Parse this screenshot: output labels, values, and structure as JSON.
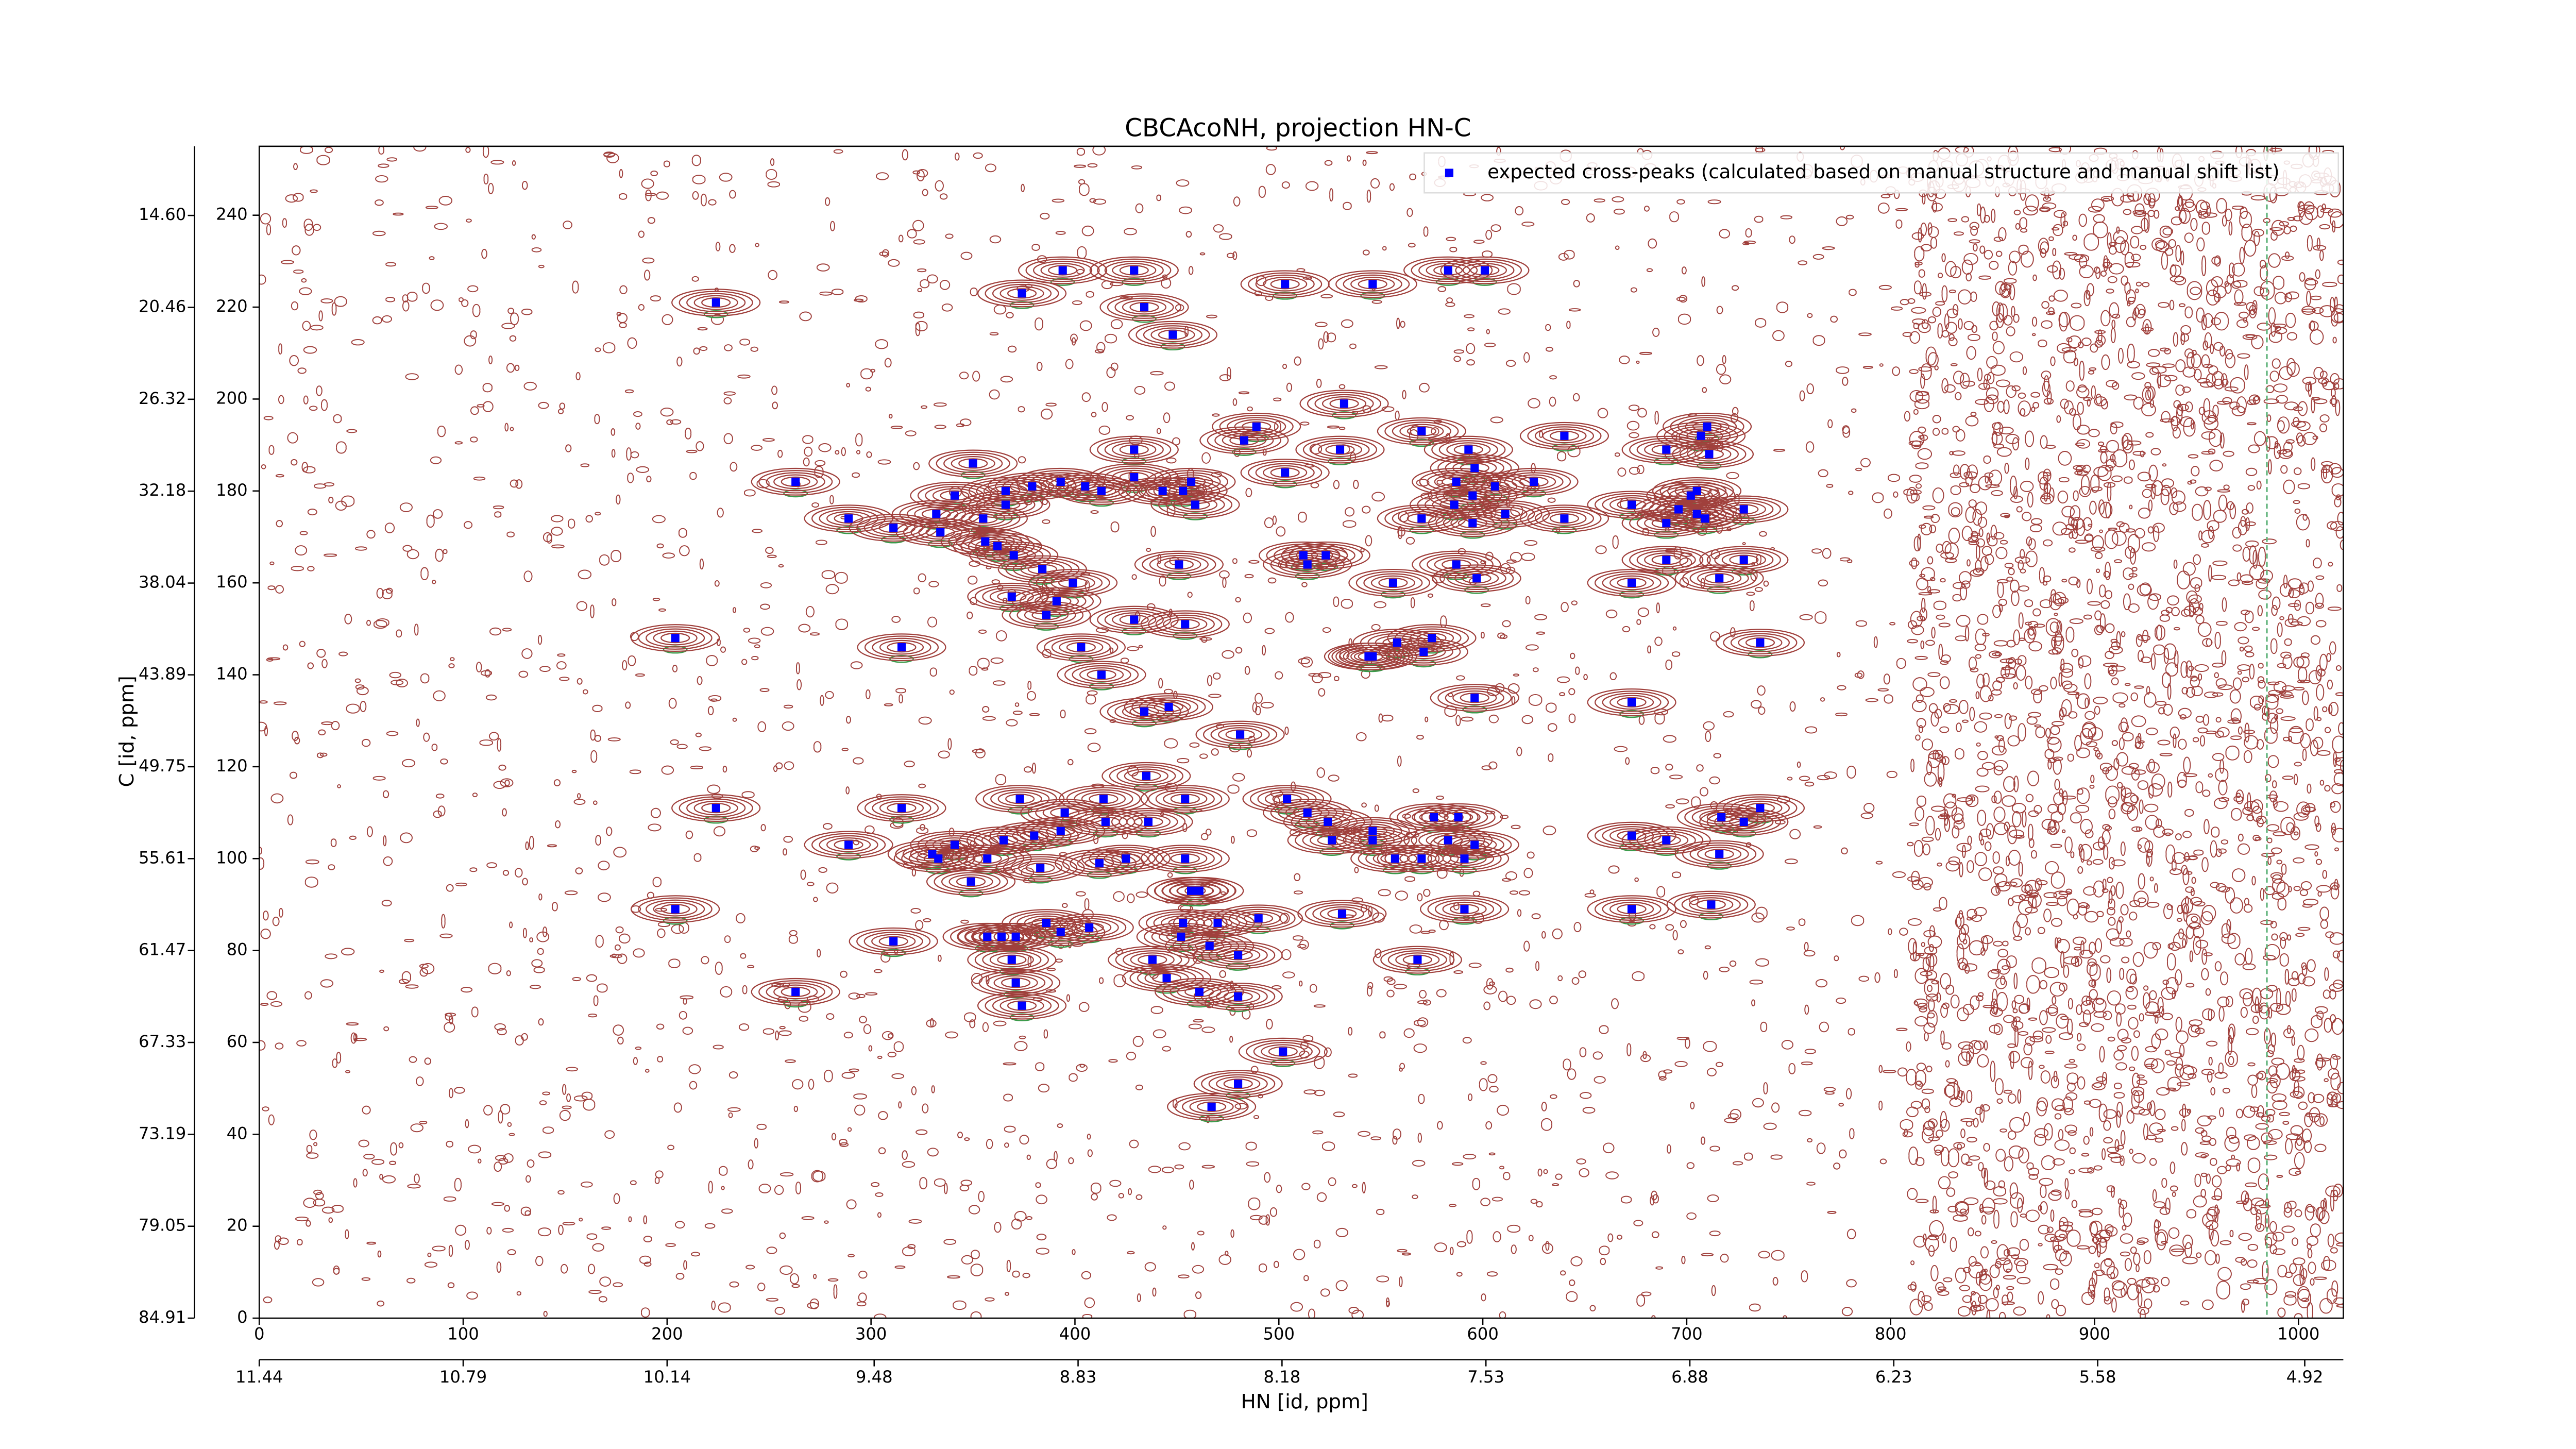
{
  "chart_data": {
    "type": "scatter",
    "title": "CBCAcoNH, projection HN-C",
    "xlabel": "HN [id, ppm]",
    "ylabel": "C [id, ppm]",
    "xlim": [
      0,
      1022
    ],
    "ylim": [
      0,
      255
    ],
    "xticks": [
      0,
      100,
      200,
      300,
      400,
      500,
      600,
      700,
      800,
      900,
      1000
    ],
    "yticks": [
      0,
      20,
      40,
      60,
      80,
      100,
      120,
      140,
      160,
      180,
      200,
      220,
      240
    ],
    "x2lim": [
      11.44,
      4.797
    ],
    "x2ticks": [
      11.44,
      10.79,
      10.14,
      9.48,
      8.83,
      8.18,
      7.53,
      6.88,
      6.23,
      5.58,
      4.92
    ],
    "y2lim": [
      84.91,
      10.19
    ],
    "y2ticks": [
      {
        "value": 14.6,
        "label": "14.60"
      },
      20.46,
      26.32,
      32.18,
      38.04,
      43.89,
      49.75,
      55.61,
      61.47,
      67.33,
      73.19,
      79.05,
      84.91
    ],
    "legend": "upper right",
    "series": [
      {
        "name": "expected cross-peaks (calculated based on manual structure and manual shift list)",
        "color": "#0000ff",
        "x": [
          224,
          204,
          224,
          204,
          263,
          263,
          289,
          311,
          315,
          315,
          289,
          311,
          374,
          394,
          429,
          434,
          448,
          503,
          546,
          583,
          601,
          483,
          489,
          503,
          532,
          530,
          570,
          593,
          596,
          587,
          606,
          625,
          640,
          640,
          611,
          595,
          570,
          586,
          595,
          587,
          597,
          690,
          707,
          710,
          711,
          673,
          690,
          696,
          702,
          705,
          705,
          709,
          728,
          690,
          673,
          716,
          728,
          736,
          673,
          596,
          575,
          558,
          571,
          546,
          544,
          556,
          523,
          514,
          512,
          451,
          429,
          429,
          413,
          405,
          393,
          379,
          366,
          366,
          355,
          341,
          350,
          332,
          334,
          356,
          362,
          370,
          369,
          384,
          399,
          391,
          386,
          429,
          454,
          403,
          413,
          434,
          446,
          453,
          457,
          443,
          459,
          481,
          414,
          435,
          415,
          436,
          454,
          504,
          514,
          524,
          546,
          576,
          588,
          373,
          395,
          393,
          380,
          365,
          357,
          341,
          330,
          333,
          349,
          383,
          412,
          425,
          454,
          461,
          457,
          526,
          546,
          557,
          570,
          583,
          596,
          591,
          531,
          591,
          673,
          712,
          673,
          690,
          716,
          717,
          728,
          736,
          357,
          364,
          371,
          386,
          393,
          407,
          369,
          371,
          374,
          438,
          445,
          453,
          470,
          490,
          466,
          452,
          480,
          461,
          480,
          568,
          502,
          480,
          467
        ],
        "values": [
          221,
          148,
          111,
          89,
          182,
          71,
          174,
          172,
          146,
          111,
          103,
          82,
          223,
          228,
          228,
          220,
          214,
          225,
          225,
          228,
          228,
          191,
          194,
          184,
          199,
          189,
          193,
          189,
          185,
          182,
          181,
          182,
          192,
          174,
          175,
          179,
          174,
          177,
          173,
          164,
          161,
          189,
          192,
          194,
          188,
          177,
          173,
          176,
          179,
          180,
          175,
          174,
          176,
          165,
          160,
          161,
          165,
          147,
          134,
          135,
          148,
          147,
          145,
          144,
          144,
          160,
          166,
          164,
          166,
          164,
          183,
          189,
          180,
          181,
          182,
          181,
          180,
          177,
          174,
          179,
          186,
          175,
          171,
          169,
          168,
          166,
          157,
          163,
          160,
          156,
          153,
          152,
          151,
          146,
          140,
          132,
          133,
          180,
          182,
          180,
          177,
          127,
          113,
          118,
          108,
          108,
          113,
          113,
          110,
          108,
          106,
          109,
          109,
          113,
          110,
          106,
          105,
          104,
          100,
          103,
          101,
          100,
          95,
          98,
          99,
          100,
          100,
          93,
          93,
          104,
          104,
          100,
          100,
          104,
          103,
          100,
          88,
          89,
          89,
          90,
          105,
          104,
          101,
          109,
          108,
          111,
          83,
          83,
          83,
          86,
          84,
          85,
          78,
          73,
          68,
          78,
          74,
          86,
          86,
          87,
          81,
          83,
          79,
          71,
          70,
          78,
          58,
          51,
          46
        ]
      }
    ]
  }
}
